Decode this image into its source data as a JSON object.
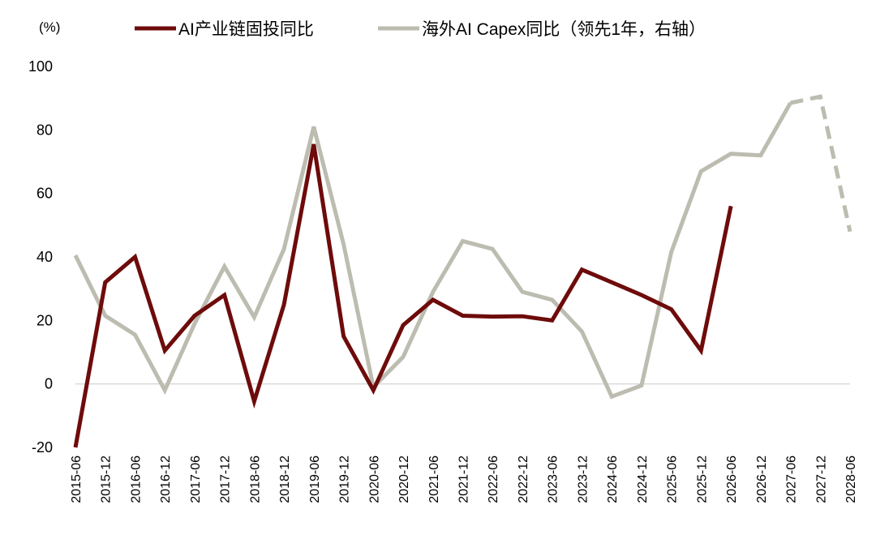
{
  "chart_data": {
    "type": "line",
    "unit_label": "(%)",
    "x": [
      "2015-06",
      "2015-12",
      "2016-06",
      "2016-12",
      "2017-06",
      "2017-12",
      "2018-06",
      "2018-12",
      "2019-06",
      "2019-12",
      "2020-06",
      "2020-12",
      "2021-06",
      "2021-12",
      "2022-06",
      "2022-12",
      "2023-06",
      "2023-12",
      "2024-06",
      "2024-12",
      "2025-06",
      "2025-12",
      "2026-06",
      "2026-12",
      "2027-06",
      "2027-12",
      "2028-06"
    ],
    "ylim": [
      -20,
      100
    ],
    "yticks": [
      -20,
      0,
      20,
      40,
      60,
      80,
      100
    ],
    "grid": false,
    "legend_position": "top",
    "series": [
      {
        "name": "AI产业链固投同比",
        "color": "#6E0B0B",
        "style": "solid",
        "values": [
          -20,
          32,
          40,
          10.5,
          21.5,
          28,
          -5.5,
          25,
          75.5,
          15,
          -2,
          18.5,
          26.5,
          21.5,
          21.2,
          21.3,
          20,
          36,
          32,
          28,
          23.5,
          10.5,
          56,
          null,
          null,
          null,
          null
        ]
      },
      {
        "name": "海外AI Capex同比（领先1年，右轴）",
        "color": "#BDBCB0",
        "style": "solid",
        "dashed_segment_start_index": 24,
        "values": [
          40.5,
          21.5,
          15.5,
          -2,
          19,
          37,
          21,
          42.5,
          81,
          44,
          -1,
          8.5,
          29,
          45,
          42.5,
          29,
          26.5,
          16.5,
          -4,
          -0.5,
          41.5,
          67,
          72.5,
          72,
          88.5,
          90.5,
          48
        ]
      }
    ]
  }
}
